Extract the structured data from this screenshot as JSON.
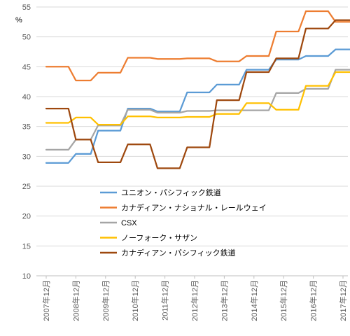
{
  "chart_data": {
    "type": "line",
    "ylabel": "%",
    "ylim": [
      10,
      55
    ],
    "y_ticks": [
      "55",
      "50",
      "45",
      "40",
      "35",
      "30",
      "25",
      "20",
      "15",
      "10"
    ],
    "x_ticks": [
      "2007年12月",
      "2008年12月",
      "2009年12月",
      "2010年12月",
      "2011年12月",
      "2012年12月",
      "2013年12月",
      "2014年12月",
      "2015年12月",
      "2016年12月",
      "2017年12月"
    ],
    "x": [
      "2007-12",
      "2008-03",
      "2008-06",
      "2008-09",
      "2008-12",
      "2009-03",
      "2009-06",
      "2009-09",
      "2009-12",
      "2010-03",
      "2010-06",
      "2010-09",
      "2010-12",
      "2011-03",
      "2011-06",
      "2011-09",
      "2011-12",
      "2012-03",
      "2012-06",
      "2012-09",
      "2012-12",
      "2013-03",
      "2013-06",
      "2013-09",
      "2013-12",
      "2014-03",
      "2014-06",
      "2014-09",
      "2014-12",
      "2015-03",
      "2015-06",
      "2015-09",
      "2015-12",
      "2016-03",
      "2016-06",
      "2016-09",
      "2016-12",
      "2017-03",
      "2017-06",
      "2017-09",
      "2017-12",
      "2018-03",
      "2018-06",
      "2018-09"
    ],
    "grid": true,
    "legend_position": "lower-left inside plot",
    "series": [
      {
        "name": "ユニオン・パシフィック鉄道",
        "color": "#5b9bd5",
        "values": [
          28.9,
          28.9,
          28.9,
          28.9,
          30.4,
          30.4,
          30.4,
          34.3,
          34.3,
          34.3,
          34.3,
          38.0,
          38.0,
          38.0,
          38.0,
          37.5,
          37.5,
          37.5,
          37.5,
          40.7,
          40.7,
          40.7,
          40.7,
          42.0,
          42.0,
          42.0,
          42.0,
          44.5,
          44.5,
          44.5,
          44.5,
          46.2,
          46.2,
          46.2,
          46.2,
          46.8,
          46.8,
          46.8,
          46.8,
          47.9,
          47.9,
          47.9,
          47.9,
          47.9
        ]
      },
      {
        "name": "カナディアン・ナショナル・レールウェイ",
        "color": "#ed7d31",
        "values": [
          45.0,
          45.0,
          45.0,
          45.0,
          42.7,
          42.7,
          42.7,
          44.0,
          44.0,
          44.0,
          44.0,
          46.5,
          46.5,
          46.5,
          46.5,
          46.3,
          46.3,
          46.3,
          46.3,
          46.4,
          46.4,
          46.4,
          46.4,
          45.9,
          45.9,
          45.9,
          45.9,
          46.8,
          46.8,
          46.8,
          46.8,
          50.9,
          50.9,
          50.9,
          50.9,
          54.3,
          54.3,
          54.3,
          54.3,
          52.5,
          52.5,
          52.5,
          52.5,
          52.5
        ]
      },
      {
        "name": "CSX",
        "color": "#a5a5a5",
        "values": [
          31.1,
          31.1,
          31.1,
          31.1,
          32.8,
          32.8,
          32.8,
          35.2,
          35.2,
          35.2,
          35.2,
          37.8,
          37.8,
          37.8,
          37.8,
          37.3,
          37.3,
          37.3,
          37.3,
          37.6,
          37.6,
          37.6,
          37.6,
          37.7,
          37.7,
          37.7,
          37.7,
          37.7,
          37.7,
          37.7,
          37.7,
          40.6,
          40.6,
          40.6,
          40.6,
          41.3,
          41.3,
          41.3,
          41.3,
          44.5,
          44.5,
          44.5,
          44.5,
          44.5
        ]
      },
      {
        "name": "ノーフォーク・サザン",
        "color": "#ffc000",
        "values": [
          35.6,
          35.6,
          35.6,
          35.6,
          36.5,
          36.5,
          36.5,
          35.3,
          35.3,
          35.3,
          35.3,
          36.7,
          36.7,
          36.7,
          36.7,
          36.5,
          36.5,
          36.5,
          36.5,
          36.6,
          36.6,
          36.6,
          36.6,
          37.1,
          37.1,
          37.1,
          37.1,
          38.9,
          38.9,
          38.9,
          38.9,
          37.8,
          37.8,
          37.8,
          37.8,
          41.8,
          41.8,
          41.8,
          41.8,
          44.1,
          44.1,
          44.1,
          44.1,
          44.1
        ]
      },
      {
        "name": "カナディアン・パシフィック鉄道",
        "color": "#9e480e",
        "values": [
          38.0,
          38.0,
          38.0,
          38.0,
          32.8,
          32.8,
          32.8,
          29.0,
          29.0,
          29.0,
          29.0,
          32.0,
          32.0,
          32.0,
          32.0,
          28.0,
          28.0,
          28.0,
          28.0,
          31.5,
          31.5,
          31.5,
          31.5,
          39.4,
          39.4,
          39.4,
          39.4,
          44.1,
          44.1,
          44.1,
          44.1,
          46.4,
          46.4,
          46.4,
          46.4,
          51.4,
          51.4,
          51.4,
          51.4,
          52.8,
          52.8,
          52.8,
          52.8,
          52.8
        ]
      }
    ]
  }
}
